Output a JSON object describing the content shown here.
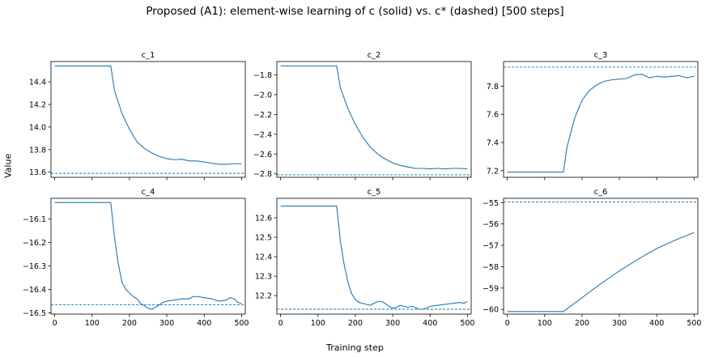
{
  "figure": {
    "title": "Proposed (A1): element-wise learning of c (solid) vs. c* (dashed) [500 steps]",
    "xlabel": "Training step",
    "ylabel": "Value"
  },
  "colors": {
    "line": "#1f77b4"
  },
  "chart_data": [
    {
      "type": "line",
      "title": "c_1",
      "xlim": [
        -10,
        510
      ],
      "ylim": [
        13.555,
        14.58
      ],
      "xticks": [
        0,
        100,
        200,
        300,
        400,
        500
      ],
      "yticks": [
        13.6,
        13.8,
        14.0,
        14.2,
        14.4
      ],
      "ytick_labels": [
        "13.6",
        "13.8",
        "14.0",
        "14.2",
        "14.4"
      ],
      "show_xtick_labels": false,
      "target": 13.59,
      "x": [
        0,
        150,
        160,
        180,
        200,
        220,
        240,
        260,
        280,
        300,
        320,
        340,
        360,
        380,
        400,
        420,
        440,
        460,
        480,
        500
      ],
      "values": [
        14.54,
        14.54,
        14.32,
        14.12,
        13.98,
        13.87,
        13.81,
        13.77,
        13.74,
        13.72,
        13.71,
        13.715,
        13.7,
        13.7,
        13.69,
        13.68,
        13.67,
        13.67,
        13.675,
        13.675
      ]
    },
    {
      "type": "line",
      "title": "c_2",
      "xlim": [
        -10,
        510
      ],
      "ylim": [
        -2.835,
        -1.665
      ],
      "xticks": [
        0,
        100,
        200,
        300,
        400,
        500
      ],
      "yticks": [
        -2.8,
        -2.6,
        -2.4,
        -2.2,
        -2.0,
        -1.8
      ],
      "ytick_labels": [
        "−2.8",
        "−2.6",
        "−2.4",
        "−2.2",
        "−2.0",
        "−1.8"
      ],
      "show_xtick_labels": false,
      "target": -2.81,
      "x": [
        0,
        150,
        160,
        180,
        200,
        220,
        240,
        260,
        280,
        300,
        320,
        340,
        360,
        380,
        400,
        420,
        440,
        460,
        480,
        500
      ],
      "values": [
        -1.71,
        -1.71,
        -1.93,
        -2.14,
        -2.3,
        -2.43,
        -2.53,
        -2.6,
        -2.65,
        -2.69,
        -2.715,
        -2.73,
        -2.745,
        -2.745,
        -2.75,
        -2.745,
        -2.75,
        -2.745,
        -2.745,
        -2.75
      ]
    },
    {
      "type": "line",
      "title": "c_3",
      "xlim": [
        -10,
        510
      ],
      "ylim": [
        7.153,
        7.975
      ],
      "xticks": [
        0,
        100,
        200,
        300,
        400,
        500
      ],
      "yticks": [
        7.2,
        7.4,
        7.6,
        7.8
      ],
      "ytick_labels": [
        "7.2",
        "7.4",
        "7.6",
        "7.8"
      ],
      "show_xtick_labels": false,
      "target": 7.935,
      "x": [
        0,
        150,
        160,
        180,
        200,
        220,
        240,
        260,
        280,
        300,
        320,
        340,
        360,
        380,
        400,
        420,
        440,
        460,
        480,
        500
      ],
      "values": [
        7.19,
        7.19,
        7.37,
        7.57,
        7.7,
        7.77,
        7.81,
        7.835,
        7.845,
        7.85,
        7.855,
        7.88,
        7.885,
        7.86,
        7.87,
        7.865,
        7.87,
        7.875,
        7.86,
        7.87
      ]
    },
    {
      "type": "line",
      "title": "c_4",
      "xlim": [
        -10,
        510
      ],
      "ylim": [
        -16.505,
        -16.012
      ],
      "xticks": [
        0,
        100,
        200,
        300,
        400,
        500
      ],
      "yticks": [
        -16.5,
        -16.4,
        -16.3,
        -16.2,
        -16.1
      ],
      "ytick_labels": [
        "−16.5",
        "−16.4",
        "−16.3",
        "−16.2",
        "−16.1"
      ],
      "show_xtick_labels": true,
      "xtick_labels": [
        "0",
        "100",
        "200",
        "300",
        "400",
        "500"
      ],
      "target": -16.465,
      "x": [
        0,
        150,
        160,
        170,
        180,
        190,
        200,
        210,
        220,
        230,
        240,
        250,
        260,
        270,
        280,
        290,
        300,
        320,
        340,
        360,
        370,
        380,
        400,
        420,
        440,
        460,
        470,
        480,
        490,
        500
      ],
      "values": [
        -16.03,
        -16.03,
        -16.18,
        -16.29,
        -16.37,
        -16.4,
        -16.415,
        -16.43,
        -16.44,
        -16.46,
        -16.47,
        -16.48,
        -16.485,
        -16.475,
        -16.465,
        -16.455,
        -16.45,
        -16.445,
        -16.44,
        -16.44,
        -16.43,
        -16.43,
        -16.435,
        -16.44,
        -16.45,
        -16.445,
        -16.435,
        -16.44,
        -16.455,
        -16.46
      ]
    },
    {
      "type": "line",
      "title": "c_5",
      "xlim": [
        -10,
        510
      ],
      "ylim": [
        12.105,
        12.7
      ],
      "xticks": [
        0,
        100,
        200,
        300,
        400,
        500
      ],
      "yticks": [
        12.2,
        12.3,
        12.4,
        12.5,
        12.6
      ],
      "ytick_labels": [
        "12.2",
        "12.3",
        "12.4",
        "12.5",
        "12.6"
      ],
      "show_xtick_labels": true,
      "xtick_labels": [
        "0",
        "100",
        "200",
        "300",
        "400",
        "500"
      ],
      "target": 12.13,
      "x": [
        0,
        150,
        160,
        170,
        180,
        190,
        200,
        210,
        220,
        230,
        240,
        250,
        260,
        270,
        280,
        290,
        300,
        310,
        320,
        330,
        340,
        350,
        360,
        370,
        380,
        390,
        400,
        420,
        440,
        460,
        480,
        490,
        500
      ],
      "values": [
        12.66,
        12.66,
        12.48,
        12.36,
        12.27,
        12.21,
        12.18,
        12.165,
        12.16,
        12.155,
        12.15,
        12.16,
        12.17,
        12.17,
        12.16,
        12.145,
        12.135,
        12.14,
        12.15,
        12.145,
        12.14,
        12.145,
        12.14,
        12.13,
        12.13,
        12.135,
        12.145,
        12.15,
        12.155,
        12.16,
        12.165,
        12.16,
        12.17
      ]
    },
    {
      "type": "line",
      "title": "c_6",
      "xlim": [
        -10,
        510
      ],
      "ylim": [
        -60.22,
        -54.8
      ],
      "xticks": [
        0,
        100,
        200,
        300,
        400,
        500
      ],
      "yticks": [
        -60,
        -59,
        -58,
        -57,
        -56,
        -55
      ],
      "ytick_labels": [
        "−60",
        "−59",
        "−58",
        "−57",
        "−56",
        "−55"
      ],
      "show_xtick_labels": true,
      "xtick_labels": [
        "0",
        "100",
        "200",
        "300",
        "400",
        "500"
      ],
      "target": -54.97,
      "x": [
        0,
        150,
        200,
        250,
        300,
        350,
        400,
        450,
        500
      ],
      "values": [
        -60.1,
        -60.1,
        -59.45,
        -58.8,
        -58.2,
        -57.65,
        -57.15,
        -56.75,
        -56.4
      ]
    }
  ]
}
